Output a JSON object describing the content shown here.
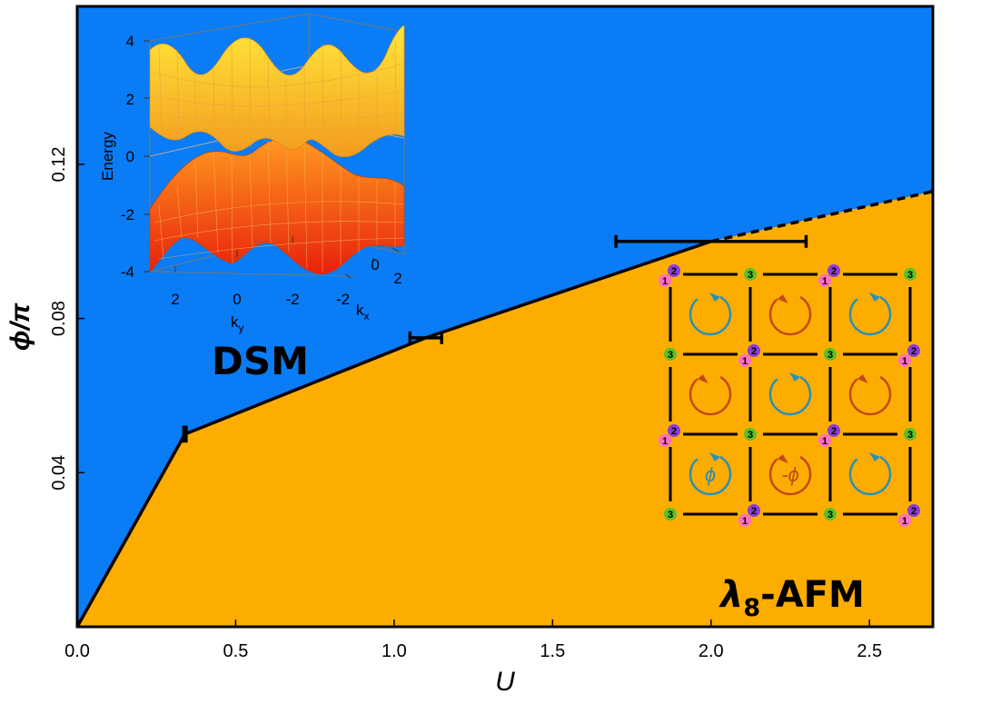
{
  "chart_data": {
    "type": "area",
    "xlabel": "U",
    "ylabel": "ϕ/π",
    "xlim": [
      0.0,
      2.7
    ],
    "ylim": [
      0.0,
      0.161
    ],
    "xticks": [
      "0.0",
      "0.5",
      "1.0",
      "1.5",
      "2.0",
      "2.5"
    ],
    "yticks": [
      "0.04",
      "0.08",
      "0.12"
    ],
    "regions": [
      {
        "label": "DSM",
        "color": "#0a7cf5",
        "side": "above boundary"
      },
      {
        "label_main": "λ",
        "label_sub": "8",
        "label_tail": "-AFM",
        "color": "#fdad00",
        "side": "below boundary"
      }
    ],
    "boundary": {
      "x": [
        0.0,
        0.34,
        1.1,
        2.0
      ],
      "y": [
        0.0,
        0.05,
        0.075,
        0.1
      ],
      "style": "solid"
    },
    "boundary_extrapolated": {
      "x": [
        2.0,
        2.7
      ],
      "y": [
        0.1,
        0.113
      ],
      "style": "dashed"
    },
    "error_bars": [
      {
        "x": 0.34,
        "y": 0.05,
        "xerr_low": 0.0,
        "xerr_high": 0.0,
        "y_half_height": 0.0015
      },
      {
        "x": 1.1,
        "y": 0.075,
        "xerr_low": 0.05,
        "xerr_high": 0.05
      },
      {
        "x": 2.0,
        "y": 0.1,
        "xerr_low": 0.3,
        "xerr_high": 0.3
      }
    ]
  },
  "inset_band": {
    "zlabel": "Energy",
    "zticks": [
      "4",
      "2",
      "0",
      "-2",
      "-4"
    ],
    "ky_ticks": [
      "2",
      "0",
      "-2"
    ],
    "kx_ticks": [
      "-2",
      "0",
      "2"
    ],
    "ky_label": "k",
    "ky_sub": "y",
    "kx_label": "k",
    "kx_sub": "x"
  },
  "inset_lattice": {
    "site_labels": [
      "1",
      "2",
      "3"
    ],
    "site_colors": {
      "1": "#ff6fc0",
      "2": "#8a3dd6",
      "3": "#5bbf2a"
    },
    "flux_colors": {
      "plus": "#2b8fb5",
      "minus": "#c24a14"
    },
    "flux_label_plus": "ϕ",
    "flux_label_minus": "-ϕ"
  }
}
